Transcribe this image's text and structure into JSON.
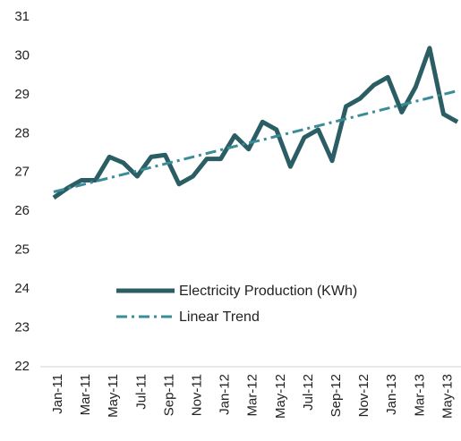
{
  "chart_data": {
    "type": "line",
    "categories": [
      "Jan-11",
      null,
      "Mar-11",
      null,
      "May-11",
      null,
      "Jul-11",
      null,
      "Sep-11",
      null,
      "Nov-11",
      null,
      "Jan-12",
      null,
      "Mar-12",
      null,
      "May-12",
      null,
      "Jul-12",
      null,
      "Sep-12",
      null,
      "Nov-12",
      null,
      "Jan-13",
      null,
      "Mar-13",
      null,
      "May-13",
      null
    ],
    "series": [
      {
        "name": "Electricity Production (KWh)",
        "color": "#2b5e64",
        "style": "solid",
        "values": [
          26.35,
          26.6,
          26.8,
          26.8,
          27.4,
          27.25,
          26.9,
          27.4,
          27.45,
          26.7,
          26.9,
          27.35,
          27.35,
          27.95,
          27.6,
          28.3,
          28.1,
          27.15,
          27.9,
          28.1,
          27.3,
          28.7,
          28.9,
          29.25,
          29.45,
          28.55,
          29.2,
          30.2,
          28.5,
          28.3
        ]
      },
      {
        "name": "Linear Trend",
        "color": "#3a8c97",
        "style": "dashdot",
        "values": [
          26.5,
          26.59,
          26.68,
          26.77,
          26.86,
          26.95,
          27.04,
          27.13,
          27.22,
          27.31,
          27.4,
          27.49,
          27.58,
          27.67,
          27.76,
          27.84,
          27.93,
          28.02,
          28.11,
          28.2,
          28.29,
          28.38,
          28.47,
          28.56,
          28.65,
          28.74,
          28.83,
          28.92,
          29.01,
          29.1
        ]
      }
    ],
    "ylim": [
      22,
      31
    ],
    "yticks": [
      22,
      23,
      24,
      25,
      26,
      27,
      28,
      29,
      30,
      31
    ],
    "grid": false,
    "legend": "bottom"
  }
}
